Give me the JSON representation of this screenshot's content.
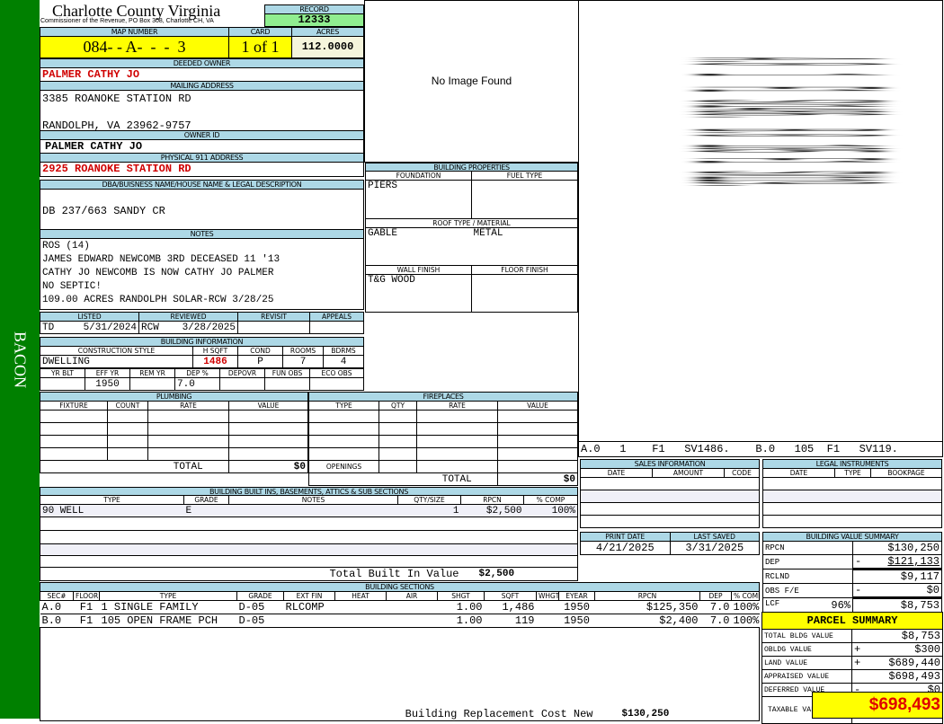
{
  "sidebar": {
    "label": "BACON",
    "color": "#008000"
  },
  "header": {
    "title": "Charlotte County Virginia",
    "subtitle": "Commissioner of the Revenue, PO Box 308, Charlotte CH, VA",
    "record_label": "RECORD",
    "record": "12333"
  },
  "map": {
    "map_label": "MAP NUMBER",
    "map_number": "084- - A-  -  -  3",
    "card_label": "CARD",
    "card": "1 of 1",
    "acres_label": "ACRES",
    "acres": "112.0000"
  },
  "owner": {
    "deeded_label": "DEEDED OWNER",
    "deeded": "PALMER CATHY JO",
    "mailing_label": "MAILING ADDRESS",
    "mailing1": "3385 ROANOKE STATION RD",
    "mailing2": "RANDOLPH, VA 23962-9757",
    "owner_id_label": "OWNER ID",
    "owner_id": "PALMER CATHY JO",
    "physical_label": "PHYSICAL 911 ADDRESS",
    "physical": "2925 ROANOKE STATION RD"
  },
  "dba": {
    "label": "DBA/BUISNESS NAME/HOUSE NAME & LEGAL DESCRIPTION",
    "value": "DB 237/663 SANDY CR"
  },
  "notes": {
    "label": "NOTES",
    "lines": [
      "ROS (14)",
      "JAMES EDWARD NEWCOMB 3RD DECEASED 11 '13",
      "CATHY JO NEWCOMB IS NOW CATHY JO PALMER",
      "NO SEPTIC!",
      "109.00 ACRES RANDOLPH SOLAR-RCW 3/28/25"
    ]
  },
  "status": {
    "listed_label": "LISTED",
    "listed_by": "TD",
    "listed": "5/31/2024",
    "reviewed_label": "REVIEWED",
    "reviewed_by": "RCW",
    "reviewed": "3/28/2025",
    "revisit_label": "REVISIT",
    "appeals_label": "APPEALS"
  },
  "building_info": {
    "label": "BUILDING INFORMATION",
    "h1": [
      "CONSTRUCTION STYLE",
      "H SQFT",
      "COND",
      "ROOMS",
      "BDRMS"
    ],
    "v1": [
      "DWELLING",
      "1486",
      "P",
      "7",
      "4"
    ],
    "h2": [
      "YR BLT",
      "EFF YR",
      "REM YR",
      "DEP %",
      "DEPOVR",
      "FUN OBS",
      "ECO OBS"
    ],
    "v2": [
      "",
      "1950",
      "",
      "7.0",
      "",
      "",
      ""
    ]
  },
  "image": {
    "text": "No Image Found"
  },
  "building_properties": {
    "label": "BUILDING PROPERTIES",
    "foundation_label": "FOUNDATION",
    "foundation": "PIERS",
    "fuel_label": "FUEL TYPE",
    "fuel": "",
    "roof_label": "ROOF TYPE / MATERIAL",
    "roof_type": "GABLE",
    "roof_material": "METAL",
    "wall_label": "WALL FINISH",
    "wall": "T&G WOOD",
    "floor_label": "FLOOR FINISH",
    "floor": ""
  },
  "sketch": {
    "legend": "A.0   1    F1   SV1486.    B.0   105  F1   SV119."
  },
  "plumbing": {
    "label": "PLUMBING",
    "cols": [
      "FIXTURE",
      "COUNT",
      "RATE",
      "VALUE"
    ],
    "total_label": "TOTAL",
    "total": "$0"
  },
  "fireplaces": {
    "label": "FIREPLACES",
    "cols": [
      "TYPE",
      "QTY",
      "RATE",
      "VALUE"
    ],
    "openings_label": "OPENINGS",
    "total_label": "TOTAL",
    "total": "$0"
  },
  "built_ins": {
    "label": "BUILDING BUILT INS, BASEMENTS, ATTICS & SUB SECTIONS",
    "cols": [
      "TYPE",
      "GRADE",
      "NOTES",
      "QTY/SIZE",
      "RPCN",
      "% COMP"
    ],
    "rows": [
      [
        "90 WELL",
        "E",
        "",
        "1",
        "$2,500",
        "100%"
      ]
    ],
    "total_label": "Total Built In Value",
    "total": "$2,500"
  },
  "sales": {
    "label": "SALES INFORMATION",
    "cols": [
      "DATE",
      "AMOUNT",
      "CODE"
    ]
  },
  "legal": {
    "label": "LEGAL INSTRUMENTS",
    "cols": [
      "DATE",
      "TYPE",
      "BOOKPAGE"
    ]
  },
  "dates": {
    "print_label": "PRINT DATE",
    "print": "4/21/2025",
    "saved_label": "LAST SAVED",
    "saved": "3/31/2025"
  },
  "bvs": {
    "label": "BUILDING VALUE SUMMARY",
    "rows": [
      {
        "l": "RPCN",
        "s": "",
        "v": "$130,250"
      },
      {
        "l": "DEP",
        "s": "-",
        "v": "$121,133"
      },
      {
        "l": "RCLND",
        "s": "",
        "v": "$9,117"
      },
      {
        "l": "OBS F/E",
        "s": "-",
        "v": "$0"
      },
      {
        "l": "LCF",
        "p": "96%",
        "s": "",
        "v": "$8,753"
      }
    ]
  },
  "sections": {
    "label": "BUILDING SECTIONS",
    "cols": [
      "SEC#",
      "FLOOR",
      "TYPE",
      "GRADE",
      "EXT FIN",
      "HEAT",
      "AIR",
      "SHGT",
      "SQFT",
      "WHGT",
      "EYEAR",
      "RPCN",
      "DEP",
      "% COMP"
    ],
    "rows": [
      [
        "A.0",
        "F1",
        "1 SINGLE FAMILY",
        "D-05",
        "RLCOMP",
        "",
        "",
        "1.00",
        "1,486",
        "",
        "1950",
        "$125,350",
        "7.0",
        "100%"
      ],
      [
        "B.0",
        "F1",
        "105 OPEN FRAME PCH",
        "D-05",
        "",
        "",
        "",
        "1.00",
        "119",
        "",
        "1950",
        "$2,400",
        "7.0",
        "100%"
      ]
    ],
    "total_label": "Building Replacement Cost New",
    "total": "$130,250"
  },
  "parcel": {
    "label": "PARCEL SUMMARY",
    "rows": [
      {
        "l": "TOTAL BLDG VALUE",
        "s": "",
        "v": "$8,753"
      },
      {
        "l": "OBLDG VALUE",
        "s": "+",
        "v": "$300"
      },
      {
        "l": "LAND VALUE",
        "s": "+",
        "v": "$689,440"
      },
      {
        "l": "APPRAISED VALUE",
        "s": "",
        "v": "$698,493"
      },
      {
        "l": "DEFERRED VALUE",
        "s": "-",
        "v": "$0"
      }
    ],
    "taxable_label": "TAXABLE VALUE",
    "taxable": "$698,493"
  }
}
